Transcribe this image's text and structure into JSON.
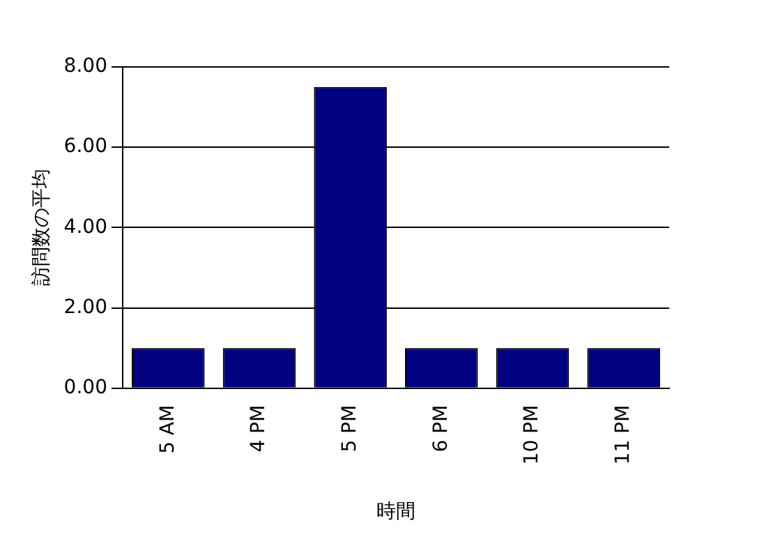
{
  "chart_data": {
    "type": "bar",
    "xlabel": "時間",
    "ylabel": "訪問数の平均",
    "categories": [
      "5 AM",
      "4 PM",
      "5 PM",
      "6 PM",
      "10 PM",
      "11 PM"
    ],
    "values": [
      1,
      1,
      7.5,
      1,
      1,
      1
    ],
    "color": "#000080",
    "ylim": [
      0,
      8
    ],
    "yticks": [
      {
        "value": 0,
        "label": "0.00"
      },
      {
        "value": 2,
        "label": "2.00"
      },
      {
        "value": 4,
        "label": "4.00"
      },
      {
        "value": 6,
        "label": "6.00"
      },
      {
        "value": 8,
        "label": "8.00"
      }
    ],
    "grid": "y",
    "legend": false
  }
}
